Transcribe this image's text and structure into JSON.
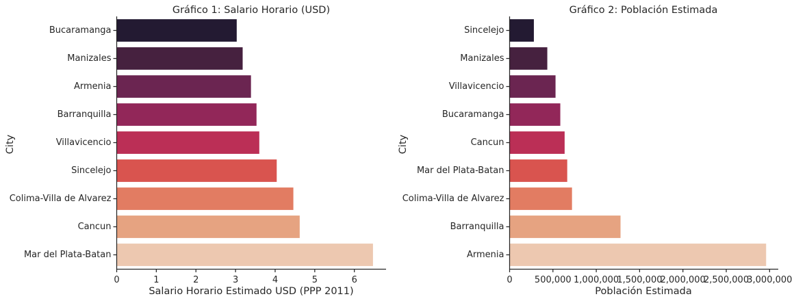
{
  "chart_data": [
    {
      "type": "bar",
      "orientation": "horizontal",
      "title": "Gráfico 1: Salario Horario (USD)",
      "xlabel": "Salario Horario Estimado USD (PPP 2011)",
      "ylabel": "City",
      "categories": [
        "Bucaramanga",
        "Manizales",
        "Armenia",
        "Barranquilla",
        "Villavicencio",
        "Sincelejo",
        "Colima-Villa de Alvarez",
        "Cancun",
        "Mar del Plata-Batan"
      ],
      "values": [
        3.03,
        3.18,
        3.39,
        3.53,
        3.6,
        4.04,
        4.46,
        4.62,
        6.47
      ],
      "xlim": [
        0,
        6.8
      ],
      "xticks": [
        0,
        1,
        2,
        3,
        4,
        5,
        6
      ],
      "xtick_labels": [
        "0",
        "1",
        "2",
        "3",
        "4",
        "5",
        "6"
      ],
      "colors": [
        "#231a32",
        "#46213f",
        "#6b2551",
        "#922759",
        "#bb2f56",
        "#d9544f",
        "#e27c62",
        "#e6a381",
        "#edc8b0"
      ],
      "grid": false,
      "legend": "none"
    },
    {
      "type": "bar",
      "orientation": "horizontal",
      "title": "Gráfico 2: Población Estimada",
      "xlabel": "Población Estimada",
      "ylabel": "City",
      "categories": [
        "Sincelejo",
        "Manizales",
        "Villavicencio",
        "Bucaramanga",
        "Cancun",
        "Mar del Plata-Batan",
        "Colima-Villa de Alvarez",
        "Barranquilla",
        "Armenia"
      ],
      "values": [
        280000,
        435000,
        530000,
        585000,
        635000,
        665000,
        720000,
        1280000,
        2960000
      ],
      "xlim": [
        0,
        3100000
      ],
      "xticks": [
        0,
        500000,
        1000000,
        1500000,
        2000000,
        2500000,
        3000000
      ],
      "xtick_labels": [
        "0",
        "500,000",
        "1,000,000",
        "1,500,000",
        "2,000,000",
        "2,500,000",
        "3,000,000"
      ],
      "colors": [
        "#231a32",
        "#46213f",
        "#6b2551",
        "#922759",
        "#bb2f56",
        "#d9544f",
        "#e27c62",
        "#e6a381",
        "#edc8b0"
      ],
      "grid": false,
      "legend": "none"
    }
  ]
}
